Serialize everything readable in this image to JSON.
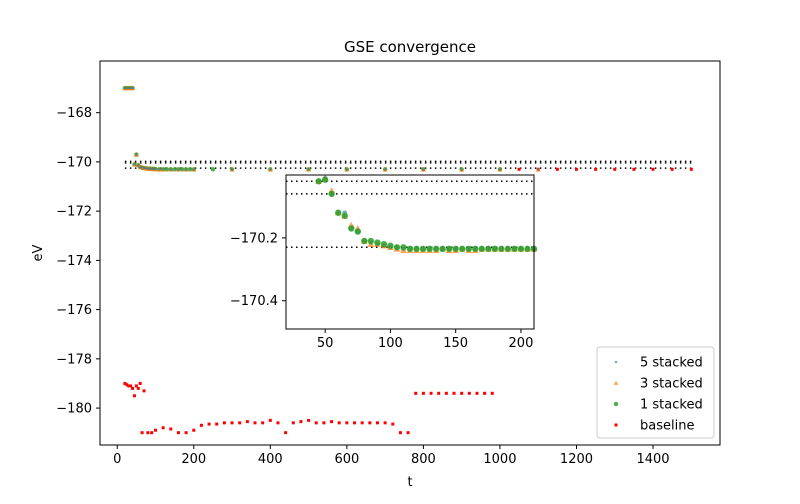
{
  "chart_data": {
    "type": "scatter",
    "title": "GSE convergence",
    "xlabel": "t",
    "ylabel": "eV",
    "xlim": [
      -45,
      1575
    ],
    "ylim": [
      -181.5,
      -165.9
    ],
    "xticks": [
      0,
      200,
      400,
      600,
      800,
      1000,
      1200,
      1400
    ],
    "yticks": [
      -180,
      -178,
      -176,
      -174,
      -172,
      -170,
      -168
    ],
    "xtick_labels": [
      "0",
      "200",
      "400",
      "600",
      "800",
      "1000",
      "1200",
      "1400"
    ],
    "ytick_labels": [
      "−180",
      "−178",
      "−176",
      "−174",
      "−172",
      "−170",
      "−168"
    ],
    "grid": false,
    "legend_position": "lower-right",
    "reference_lines": [
      -169.98,
      -170.04,
      -170.25
    ],
    "reference_line_x_range": [
      20,
      1500
    ],
    "series": [
      {
        "name": "5 stacked",
        "color": "#1f77b4",
        "marker": "point",
        "x": [
          20,
          25,
          30,
          35,
          40,
          45,
          50,
          55,
          60,
          65,
          70,
          75,
          80,
          85,
          90,
          95,
          100,
          110,
          120,
          140,
          160,
          180,
          200,
          300,
          400,
          500,
          600,
          700,
          800,
          900,
          1000,
          1100
        ],
        "y": [
          -167.0,
          -167.0,
          -167.0,
          -167.0,
          -167.0,
          -170.1,
          -169.7,
          -170.14,
          -170.22,
          -170.22,
          -170.25,
          -170.26,
          -170.28,
          -170.28,
          -170.28,
          -170.29,
          -170.29,
          -170.3,
          -170.3,
          -170.31,
          -170.31,
          -170.31,
          -170.31,
          -170.31,
          -170.31,
          -170.31,
          -170.31,
          -170.31,
          -170.31,
          -170.31,
          -170.31,
          -170.31
        ]
      },
      {
        "name": "3 stacked",
        "color": "#ff7f0e",
        "marker": "triangle",
        "x": [
          20,
          25,
          30,
          35,
          40,
          45,
          50,
          55,
          60,
          65,
          70,
          75,
          80,
          85,
          90,
          95,
          100,
          110,
          120,
          140,
          160,
          180,
          200,
          300,
          400,
          500,
          600,
          700,
          800,
          900,
          1000,
          1100
        ],
        "y": [
          -167.0,
          -167.0,
          -167.0,
          -167.0,
          -167.0,
          -170.1,
          -169.7,
          -170.12,
          -170.21,
          -170.21,
          -170.24,
          -170.26,
          -170.27,
          -170.28,
          -170.29,
          -170.3,
          -170.3,
          -170.31,
          -170.31,
          -170.31,
          -170.31,
          -170.31,
          -170.31,
          -170.31,
          -170.31,
          -170.31,
          -170.31,
          -170.31,
          -170.31,
          -170.31,
          -170.31,
          -170.31
        ]
      },
      {
        "name": "1 stacked",
        "color": "#2ca02c",
        "marker": "circle",
        "x": [
          20,
          25,
          30,
          35,
          40,
          45,
          50,
          55,
          60,
          65,
          70,
          75,
          80,
          85,
          90,
          95,
          100,
          110,
          120,
          130,
          140,
          150,
          160,
          170,
          180,
          190,
          200,
          250,
          300,
          400,
          500,
          600,
          700,
          800,
          900,
          1000
        ],
        "y": [
          -167.0,
          -167.0,
          -167.0,
          -167.0,
          -167.0,
          -170.1,
          -169.7,
          -170.14,
          -170.21,
          -170.24,
          -170.25,
          -170.26,
          -170.27,
          -170.27,
          -170.28,
          -170.28,
          -170.29,
          -170.3,
          -170.3,
          -170.3,
          -170.3,
          -170.3,
          -170.3,
          -170.3,
          -170.3,
          -170.3,
          -170.3,
          -170.3,
          -170.3,
          -170.3,
          -170.3,
          -170.3,
          -170.3,
          -170.3,
          -170.3,
          -170.3
        ]
      },
      {
        "name": "baseline",
        "color": "#ff0000",
        "marker": "square",
        "x": [
          20,
          25,
          30,
          35,
          40,
          45,
          50,
          55,
          60,
          65,
          70,
          80,
          90,
          100,
          120,
          140,
          160,
          180,
          200,
          220,
          240,
          260,
          280,
          300,
          320,
          340,
          360,
          380,
          400,
          420,
          440,
          460,
          480,
          500,
          520,
          540,
          560,
          580,
          600,
          620,
          640,
          660,
          680,
          700,
          720,
          740,
          760,
          780,
          800,
          820,
          840,
          860,
          880,
          900,
          920,
          940,
          960,
          980,
          1000,
          1050,
          1100,
          1150,
          1200,
          1250,
          1300,
          1350,
          1400,
          1450,
          1500
        ],
        "y": [
          -179.0,
          -179.05,
          -179.1,
          -179.1,
          -179.2,
          -179.5,
          -179.1,
          -179.2,
          -179.0,
          -181.0,
          -179.3,
          -181.0,
          -181.0,
          -180.9,
          -180.8,
          -180.85,
          -181.0,
          -181.0,
          -180.9,
          -180.7,
          -180.65,
          -180.65,
          -180.6,
          -180.6,
          -180.6,
          -180.55,
          -180.6,
          -180.6,
          -180.5,
          -180.6,
          -181.0,
          -180.6,
          -180.55,
          -180.5,
          -180.6,
          -180.6,
          -180.55,
          -180.6,
          -180.6,
          -180.6,
          -180.6,
          -180.6,
          -180.6,
          -180.6,
          -180.65,
          -181.0,
          -181.0,
          -179.4,
          -179.4,
          -179.4,
          -179.4,
          -179.4,
          -179.4,
          -179.4,
          -179.4,
          -179.4,
          -179.4,
          -179.4,
          -170.3,
          -170.3,
          -170.3,
          -170.3,
          -170.3,
          -170.3,
          -170.3,
          -170.3,
          -170.3,
          -170.3,
          -170.3
        ]
      }
    ],
    "inset": {
      "xlim": [
        20,
        210
      ],
      "ylim": [
        -170.49,
        -170.0
      ],
      "xticks": [
        50,
        100,
        150,
        200
      ],
      "yticks": [
        -170.4,
        -170.2
      ],
      "xtick_labels": [
        "50",
        "100",
        "150",
        "200"
      ],
      "ytick_labels": [
        "−170.4",
        "−170.2"
      ],
      "reference_lines": [
        -170.02,
        -170.06,
        -170.23
      ],
      "points_x": [
        45,
        50,
        55,
        60,
        65,
        70,
        75,
        80,
        85,
        90,
        95,
        100,
        105,
        110,
        115,
        120,
        125,
        130,
        135,
        140,
        145,
        150,
        155,
        160,
        165,
        170,
        175,
        180,
        185,
        190,
        195,
        200,
        205,
        210
      ],
      "series_y": {
        "5 stacked": [
          -170.02,
          -170.01,
          -170.06,
          -170.12,
          -170.12,
          -170.17,
          -170.18,
          -170.21,
          -170.215,
          -170.22,
          -170.225,
          -170.23,
          -170.23,
          -170.235,
          -170.235,
          -170.235,
          -170.235,
          -170.235,
          -170.235,
          -170.235,
          -170.235,
          -170.235,
          -170.235,
          -170.235,
          -170.235,
          -170.235,
          -170.235,
          -170.235,
          -170.235,
          -170.235,
          -170.235,
          -170.235,
          -170.235,
          -170.235
        ],
        "3 stacked": [
          -170.02,
          -170.01,
          -170.05,
          -170.12,
          -170.13,
          -170.16,
          -170.17,
          -170.21,
          -170.22,
          -170.22,
          -170.225,
          -170.23,
          -170.235,
          -170.24,
          -170.24,
          -170.24,
          -170.24,
          -170.24,
          -170.24,
          -170.235,
          -170.24,
          -170.24,
          -170.235,
          -170.24,
          -170.24,
          -170.235,
          -170.235,
          -170.235,
          -170.235,
          -170.235,
          -170.235,
          -170.235,
          -170.235,
          -170.235
        ],
        "1 stacked": [
          -170.02,
          -170.015,
          -170.06,
          -170.12,
          -170.13,
          -170.17,
          -170.18,
          -170.21,
          -170.21,
          -170.215,
          -170.22,
          -170.225,
          -170.23,
          -170.23,
          -170.235,
          -170.235,
          -170.235,
          -170.235,
          -170.235,
          -170.235,
          -170.235,
          -170.235,
          -170.235,
          -170.235,
          -170.235,
          -170.235,
          -170.235,
          -170.235,
          -170.235,
          -170.235,
          -170.235,
          -170.235,
          -170.235,
          -170.235
        ]
      }
    }
  }
}
